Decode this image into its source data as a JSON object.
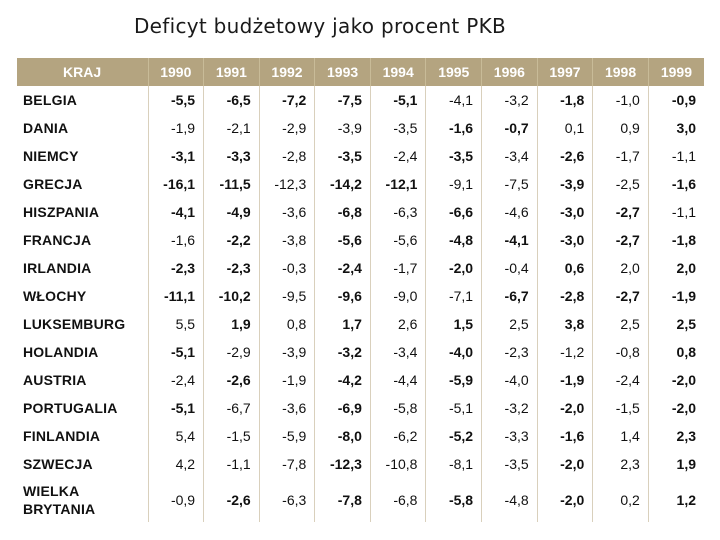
{
  "title": "Deficyt budżetowy jako procent PKB",
  "table": {
    "header": {
      "country": "KRAJ",
      "years": [
        "1990",
        "1991",
        "1992",
        "1993",
        "1994",
        "1995",
        "1996",
        "1997",
        "1998",
        "1999"
      ]
    },
    "rows": [
      {
        "country": "BELGIA",
        "values": [
          "-5,5",
          "-6,5",
          "-7,2",
          "-7,5",
          "-5,1",
          "-4,1",
          "-3,2",
          "-1,8",
          "-1,0",
          "-0,9"
        ],
        "bold": [
          1,
          1,
          1,
          1,
          1,
          0,
          0,
          1,
          0,
          1
        ]
      },
      {
        "country": "DANIA",
        "values": [
          "-1,9",
          "-2,1",
          "-2,9",
          "-3,9",
          "-3,5",
          "-1,6",
          "-0,7",
          "0,1",
          "0,9",
          "3,0"
        ],
        "bold": [
          0,
          0,
          0,
          0,
          0,
          1,
          1,
          0,
          0,
          1
        ]
      },
      {
        "country": "NIEMCY",
        "values": [
          "-3,1",
          "-3,3",
          "-2,8",
          "-3,5",
          "-2,4",
          "-3,5",
          "-3,4",
          "-2,6",
          "-1,7",
          "-1,1"
        ],
        "bold": [
          1,
          1,
          0,
          1,
          0,
          1,
          0,
          1,
          0,
          0
        ]
      },
      {
        "country": "GRECJA",
        "values": [
          "-16,1",
          "-11,5",
          "-12,3",
          "-14,2",
          "-12,1",
          "-9,1",
          "-7,5",
          "-3,9",
          "-2,5",
          "-1,6"
        ],
        "bold": [
          1,
          1,
          0,
          1,
          1,
          0,
          0,
          1,
          0,
          1
        ]
      },
      {
        "country": "HISZPANIA",
        "values": [
          "-4,1",
          "-4,9",
          "-3,6",
          "-6,8",
          "-6,3",
          "-6,6",
          "-4,6",
          "-3,0",
          "-2,7",
          "-1,1"
        ],
        "bold": [
          1,
          1,
          0,
          1,
          0,
          1,
          0,
          1,
          1,
          0
        ]
      },
      {
        "country": "FRANCJA",
        "values": [
          "-1,6",
          "-2,2",
          "-3,8",
          "-5,6",
          "-5,6",
          "-4,8",
          "-4,1",
          "-3,0",
          "-2,7",
          "-1,8"
        ],
        "bold": [
          0,
          1,
          0,
          1,
          0,
          1,
          1,
          1,
          1,
          1
        ]
      },
      {
        "country": "IRLANDIA",
        "values": [
          "-2,3",
          "-2,3",
          "-0,3",
          "-2,4",
          "-1,7",
          "-2,0",
          "-0,4",
          "0,6",
          "2,0",
          "2,0"
        ],
        "bold": [
          1,
          1,
          0,
          1,
          0,
          1,
          0,
          1,
          0,
          1
        ]
      },
      {
        "country": "WŁOCHY",
        "values": [
          "-11,1",
          "-10,2",
          "-9,5",
          "-9,6",
          "-9,0",
          "-7,1",
          "-6,7",
          "-2,8",
          "-2,7",
          "-1,9"
        ],
        "bold": [
          1,
          1,
          0,
          1,
          0,
          0,
          1,
          1,
          1,
          1
        ]
      },
      {
        "country": "LUKSEMBURG",
        "values": [
          "5,5",
          "1,9",
          "0,8",
          "1,7",
          "2,6",
          "1,5",
          "2,5",
          "3,8",
          "2,5",
          "2,5"
        ],
        "bold": [
          0,
          1,
          0,
          1,
          0,
          1,
          0,
          1,
          0,
          1
        ]
      },
      {
        "country": "HOLANDIA",
        "values": [
          "-5,1",
          "-2,9",
          "-3,9",
          "-3,2",
          "-3,4",
          "-4,0",
          "-2,3",
          "-1,2",
          "-0,8",
          "0,8"
        ],
        "bold": [
          1,
          0,
          0,
          1,
          0,
          1,
          0,
          0,
          0,
          1
        ]
      },
      {
        "country": "AUSTRIA",
        "values": [
          "-2,4",
          "-2,6",
          "-1,9",
          "-4,2",
          "-4,4",
          "-5,9",
          "-4,0",
          "-1,9",
          "-2,4",
          "-2,0"
        ],
        "bold": [
          0,
          1,
          0,
          1,
          0,
          1,
          0,
          1,
          0,
          1
        ]
      },
      {
        "country": "PORTUGALIA",
        "values": [
          "-5,1",
          "-6,7",
          "-3,6",
          "-6,9",
          "-5,8",
          "-5,1",
          "-3,2",
          "-2,0",
          "-1,5",
          "-2,0"
        ],
        "bold": [
          1,
          0,
          0,
          1,
          0,
          0,
          0,
          1,
          0,
          1
        ]
      },
      {
        "country": "FINLANDIA",
        "values": [
          "5,4",
          "-1,5",
          "-5,9",
          "-8,0",
          "-6,2",
          "-5,2",
          "-3,3",
          "-1,6",
          "1,4",
          "2,3"
        ],
        "bold": [
          0,
          0,
          0,
          1,
          0,
          1,
          0,
          1,
          0,
          1
        ]
      },
      {
        "country": "SZWECJA",
        "values": [
          "4,2",
          "-1,1",
          "-7,8",
          "-12,3",
          "-10,8",
          "-8,1",
          "-3,5",
          "-2,0",
          "2,3",
          "1,9"
        ],
        "bold": [
          0,
          0,
          0,
          1,
          0,
          0,
          0,
          1,
          0,
          1
        ]
      },
      {
        "country": "WIELKA BRYTANIA",
        "values": [
          "-0,9",
          "-2,6",
          "-6,3",
          "-7,8",
          "-6,8",
          "-5,8",
          "-4,8",
          "-2,0",
          "0,2",
          "1,2"
        ],
        "bold": [
          0,
          1,
          0,
          1,
          0,
          1,
          0,
          1,
          0,
          1
        ]
      }
    ]
  }
}
